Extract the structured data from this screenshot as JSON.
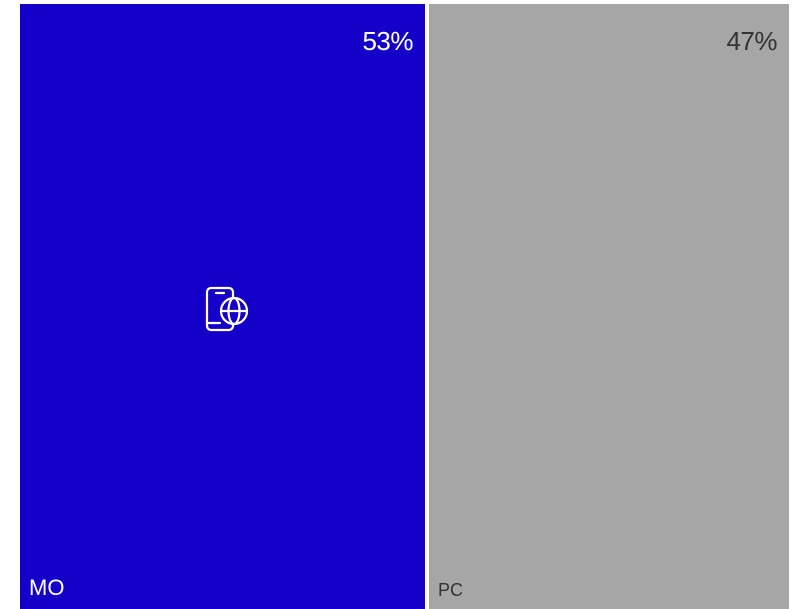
{
  "chart_data": {
    "type": "treemap",
    "title": "",
    "categories": [
      "MO",
      "PC"
    ],
    "values": [
      53,
      47
    ],
    "value_labels": [
      "53%",
      "47%"
    ],
    "colors": [
      "#1400c8",
      "#a6a6a6"
    ],
    "label_colors": [
      "#ffffff",
      "#333333"
    ],
    "icons": [
      "mobile-globe-icon",
      null
    ]
  }
}
